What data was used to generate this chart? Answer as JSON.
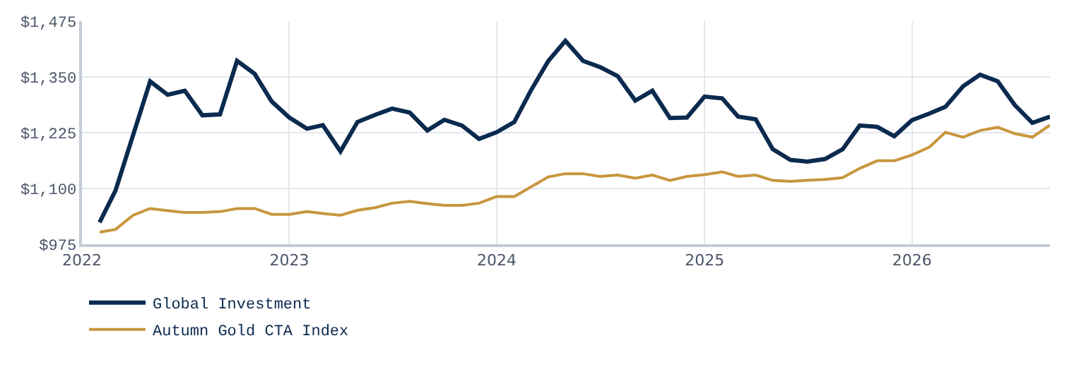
{
  "chart_data": {
    "type": "line",
    "series": [
      {
        "name": "Global Investment",
        "color": "#0b2a4f",
        "x": [
          "2022-02",
          "2022-03",
          "2022-05",
          "2022-06",
          "2022-07",
          "2022-08",
          "2022-09",
          "2022-10",
          "2022-11",
          "2022-12",
          "2023-01",
          "2023-02",
          "2023-03",
          "2023-04",
          "2023-05",
          "2023-06",
          "2023-07",
          "2023-08",
          "2023-09",
          "2023-10",
          "2023-11",
          "2023-12",
          "2024-01",
          "2024-02",
          "2024-03",
          "2024-04",
          "2024-05",
          "2024-06",
          "2024-07",
          "2024-08",
          "2024-09",
          "2024-10",
          "2024-11",
          "2024-12",
          "2025-01",
          "2025-02",
          "2025-03",
          "2025-04",
          "2025-05",
          "2025-06",
          "2025-07",
          "2025-08",
          "2025-09",
          "2025-10",
          "2025-11",
          "2025-12",
          "2026-01",
          "2026-02",
          "2026-03",
          "2026-04",
          "2026-05",
          "2026-06",
          "2026-07",
          "2026-08",
          "2026-09"
        ],
        "values": [
          1024,
          1095,
          1340,
          1310,
          1319,
          1264,
          1266,
          1386,
          1357,
          1295,
          1259,
          1234,
          1242,
          1183,
          1249,
          1265,
          1279,
          1270,
          1230,
          1254,
          1241,
          1211,
          1226,
          1249,
          1319,
          1386,
          1431,
          1386,
          1372,
          1352,
          1297,
          1319,
          1258,
          1259,
          1306,
          1302,
          1261,
          1255,
          1188,
          1164,
          1160,
          1166,
          1188,
          1241,
          1238,
          1217,
          1253,
          1268,
          1283,
          1329,
          1355,
          1340,
          1287,
          1247,
          1261
        ]
      },
      {
        "name": "Autumn Gold CTA Index",
        "color": "#c8963e",
        "x": [
          "2022-02",
          "2022-03",
          "2022-04",
          "2022-05",
          "2022-06",
          "2022-07",
          "2022-08",
          "2022-09",
          "2022-10",
          "2022-11",
          "2022-12",
          "2023-01",
          "2023-02",
          "2023-03",
          "2023-04",
          "2023-05",
          "2023-06",
          "2023-07",
          "2023-08",
          "2023-09",
          "2023-10",
          "2023-11",
          "2023-12",
          "2024-01",
          "2024-02",
          "2024-03",
          "2024-04",
          "2024-05",
          "2024-06",
          "2024-07",
          "2024-08",
          "2024-09",
          "2024-10",
          "2024-11",
          "2024-12",
          "2025-01",
          "2025-02",
          "2025-03",
          "2025-04",
          "2025-05",
          "2025-06",
          "2025-07",
          "2025-08",
          "2025-09",
          "2025-10",
          "2025-11",
          "2025-12",
          "2026-01",
          "2026-02",
          "2026-03",
          "2026-04",
          "2026-05",
          "2026-06",
          "2026-07",
          "2026-08",
          "2026-09"
        ],
        "values": [
          1002,
          1008,
          1040,
          1055,
          1050,
          1046,
          1046,
          1048,
          1055,
          1055,
          1042,
          1042,
          1048,
          1044,
          1040,
          1051,
          1057,
          1067,
          1071,
          1066,
          1062,
          1062,
          1067,
          1082,
          1082,
          1103,
          1126,
          1133,
          1133,
          1127,
          1130,
          1123,
          1130,
          1118,
          1127,
          1131,
          1137,
          1127,
          1130,
          1118,
          1116,
          1118,
          1120,
          1124,
          1145,
          1162,
          1162,
          1175,
          1193,
          1226,
          1215,
          1230,
          1237,
          1223,
          1215,
          1242
        ]
      }
    ],
    "xlim": [
      "2022-01-01",
      "2026-09-01"
    ],
    "xticks": [
      "2022",
      "2023",
      "2024",
      "2025",
      "2026"
    ],
    "ylim": [
      975,
      1475
    ],
    "yticks": [
      {
        "value": 975,
        "label": "$975"
      },
      {
        "value": 1100,
        "label": "$1,100"
      },
      {
        "value": 1225,
        "label": "$1,225"
      },
      {
        "value": 1350,
        "label": "$1,350"
      },
      {
        "value": 1475,
        "label": "$1,475"
      }
    ],
    "grid": true,
    "legend": "bottom",
    "marker": "none",
    "line_style": "solid"
  }
}
